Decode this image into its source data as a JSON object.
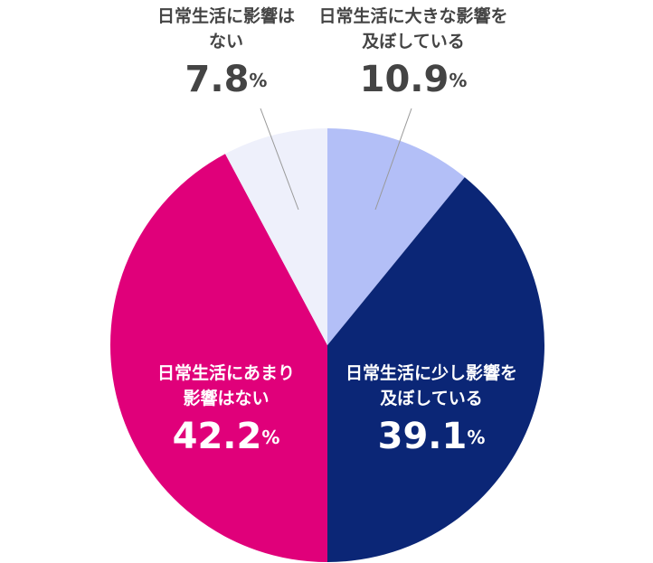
{
  "chart_data": {
    "type": "pie",
    "categories": [
      "日常生活に大きな影響を及ぼしている",
      "日常生活に少し影響を及ぼしている",
      "日常生活にあまり影響はない",
      "日常生活に影響はない"
    ],
    "values": [
      10.9,
      39.1,
      42.2,
      7.8
    ],
    "value_labels": [
      "10.9%",
      "39.1%",
      "42.2%",
      "7.8%"
    ],
    "colors": [
      "#b3bff7",
      "#0b2676",
      "#e0007a",
      "#eef0fb"
    ]
  }
}
